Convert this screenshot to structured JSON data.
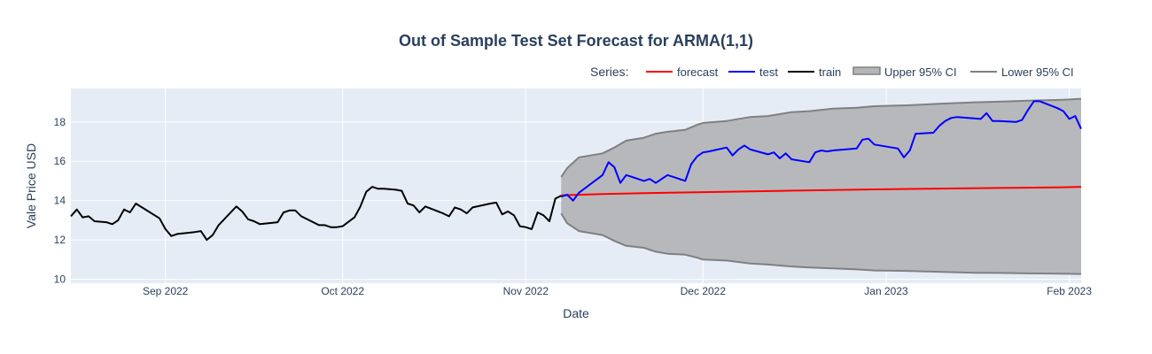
{
  "chart_data": {
    "type": "line",
    "title": "Out of Sample Test Set Forecast for ARMA(1,1)",
    "xlabel": "Date",
    "ylabel": "Vale Price USD",
    "xlim": [
      "2022-08-16",
      "2023-02-03"
    ],
    "ylim": [
      9.8,
      19.7
    ],
    "x_ticks": [
      {
        "date": "2022-09-01",
        "label": "Sep 2022"
      },
      {
        "date": "2022-10-01",
        "label": "Oct 2022"
      },
      {
        "date": "2022-11-01",
        "label": "Nov 2022"
      },
      {
        "date": "2022-12-01",
        "label": "Dec 2022"
      },
      {
        "date": "2023-01-01",
        "label": "Jan 2023"
      },
      {
        "date": "2023-02-01",
        "label": "Feb 2023"
      }
    ],
    "y_ticks": [
      10,
      12,
      14,
      16,
      18
    ],
    "grid": true,
    "legend": {
      "title": "Series:",
      "placement": "top-right",
      "orientation": "horizontal"
    },
    "series": [
      {
        "name": "Upper 95% CI",
        "color": "#808080",
        "fill_to": "Lower 95% CI",
        "fill_color": "#b4b5b8",
        "points": [
          [
            "2022-11-07",
            15.2
          ],
          [
            "2022-11-08",
            15.65
          ],
          [
            "2022-11-10",
            16.2
          ],
          [
            "2022-11-14",
            16.4
          ],
          [
            "2022-11-16",
            16.7
          ],
          [
            "2022-11-18",
            17.05
          ],
          [
            "2022-11-21",
            17.2
          ],
          [
            "2022-11-23",
            17.4
          ],
          [
            "2022-11-25",
            17.5
          ],
          [
            "2022-11-28",
            17.6
          ],
          [
            "2022-11-30",
            17.85
          ],
          [
            "2022-12-01",
            17.95
          ],
          [
            "2022-12-05",
            18.05
          ],
          [
            "2022-12-09",
            18.25
          ],
          [
            "2022-12-12",
            18.3
          ],
          [
            "2022-12-16",
            18.5
          ],
          [
            "2022-12-19",
            18.55
          ],
          [
            "2022-12-23",
            18.68
          ],
          [
            "2022-12-27",
            18.72
          ],
          [
            "2022-12-30",
            18.8
          ],
          [
            "2023-01-05",
            18.85
          ],
          [
            "2023-01-10",
            18.92
          ],
          [
            "2023-01-16",
            19.0
          ],
          [
            "2023-01-20",
            19.03
          ],
          [
            "2023-01-25",
            19.08
          ],
          [
            "2023-01-31",
            19.13
          ],
          [
            "2023-02-03",
            19.18
          ]
        ]
      },
      {
        "name": "Lower 95% CI",
        "color": "#808080",
        "points": [
          [
            "2022-11-07",
            13.35
          ],
          [
            "2022-11-08",
            12.85
          ],
          [
            "2022-11-10",
            12.45
          ],
          [
            "2022-11-14",
            12.25
          ],
          [
            "2022-11-16",
            11.95
          ],
          [
            "2022-11-18",
            11.7
          ],
          [
            "2022-11-21",
            11.6
          ],
          [
            "2022-11-23",
            11.4
          ],
          [
            "2022-11-25",
            11.3
          ],
          [
            "2022-11-28",
            11.25
          ],
          [
            "2022-11-30",
            11.1
          ],
          [
            "2022-12-01",
            11.0
          ],
          [
            "2022-12-05",
            10.95
          ],
          [
            "2022-12-09",
            10.8
          ],
          [
            "2022-12-12",
            10.75
          ],
          [
            "2022-12-16",
            10.65
          ],
          [
            "2022-12-19",
            10.6
          ],
          [
            "2022-12-23",
            10.55
          ],
          [
            "2022-12-27",
            10.5
          ],
          [
            "2022-12-30",
            10.45
          ],
          [
            "2023-01-05",
            10.42
          ],
          [
            "2023-01-10",
            10.38
          ],
          [
            "2023-01-16",
            10.33
          ],
          [
            "2023-01-20",
            10.32
          ],
          [
            "2023-01-25",
            10.3
          ],
          [
            "2023-01-31",
            10.28
          ],
          [
            "2023-02-03",
            10.27
          ]
        ]
      },
      {
        "name": "forecast",
        "color": "#ff0000",
        "points": [
          [
            "2022-11-07",
            14.27
          ],
          [
            "2022-11-14",
            14.33
          ],
          [
            "2022-11-21",
            14.38
          ],
          [
            "2022-11-30",
            14.42
          ],
          [
            "2022-12-09",
            14.47
          ],
          [
            "2022-12-19",
            14.52
          ],
          [
            "2022-12-30",
            14.57
          ],
          [
            "2023-01-10",
            14.61
          ],
          [
            "2023-01-20",
            14.64
          ],
          [
            "2023-01-31",
            14.68
          ],
          [
            "2023-02-03",
            14.7
          ]
        ]
      },
      {
        "name": "test",
        "color": "#0000ff",
        "points": [
          [
            "2022-11-07",
            14.2
          ],
          [
            "2022-11-08",
            14.3
          ],
          [
            "2022-11-09",
            14.0
          ],
          [
            "2022-11-10",
            14.4
          ],
          [
            "2022-11-14",
            15.3
          ],
          [
            "2022-11-15",
            15.95
          ],
          [
            "2022-11-16",
            15.7
          ],
          [
            "2022-11-17",
            14.9
          ],
          [
            "2022-11-18",
            15.3
          ],
          [
            "2022-11-21",
            15.0
          ],
          [
            "2022-11-22",
            15.1
          ],
          [
            "2022-11-23",
            14.9
          ],
          [
            "2022-11-25",
            15.3
          ],
          [
            "2022-11-28",
            15.0
          ],
          [
            "2022-11-29",
            15.85
          ],
          [
            "2022-11-30",
            16.25
          ],
          [
            "2022-12-01",
            16.45
          ],
          [
            "2022-12-02",
            16.5
          ],
          [
            "2022-12-05",
            16.7
          ],
          [
            "2022-12-06",
            16.3
          ],
          [
            "2022-12-07",
            16.6
          ],
          [
            "2022-12-08",
            16.8
          ],
          [
            "2022-12-09",
            16.6
          ],
          [
            "2022-12-12",
            16.35
          ],
          [
            "2022-12-13",
            16.45
          ],
          [
            "2022-12-14",
            16.15
          ],
          [
            "2022-12-15",
            16.4
          ],
          [
            "2022-12-16",
            16.1
          ],
          [
            "2022-12-19",
            15.95
          ],
          [
            "2022-12-20",
            16.45
          ],
          [
            "2022-12-21",
            16.55
          ],
          [
            "2022-12-22",
            16.5
          ],
          [
            "2022-12-23",
            16.55
          ],
          [
            "2022-12-27",
            16.65
          ],
          [
            "2022-12-28",
            17.1
          ],
          [
            "2022-12-29",
            17.15
          ],
          [
            "2022-12-30",
            16.85
          ],
          [
            "2023-01-03",
            16.65
          ],
          [
            "2023-01-04",
            16.2
          ],
          [
            "2023-01-05",
            16.55
          ],
          [
            "2023-01-06",
            17.4
          ],
          [
            "2023-01-09",
            17.45
          ],
          [
            "2023-01-10",
            17.8
          ],
          [
            "2023-01-11",
            18.05
          ],
          [
            "2023-01-12",
            18.2
          ],
          [
            "2023-01-13",
            18.25
          ],
          [
            "2023-01-17",
            18.15
          ],
          [
            "2023-01-18",
            18.45
          ],
          [
            "2023-01-19",
            18.05
          ],
          [
            "2023-01-20",
            18.05
          ],
          [
            "2023-01-23",
            18.0
          ],
          [
            "2023-01-24",
            18.1
          ],
          [
            "2023-01-25",
            18.6
          ],
          [
            "2023-01-26",
            19.05
          ],
          [
            "2023-01-27",
            19.05
          ],
          [
            "2023-01-30",
            18.7
          ],
          [
            "2023-01-31",
            18.55
          ],
          [
            "2023-02-01",
            18.15
          ],
          [
            "2023-02-02",
            18.3
          ],
          [
            "2023-02-03",
            17.65
          ]
        ]
      },
      {
        "name": "train",
        "color": "#000000",
        "points": [
          [
            "2022-08-16",
            13.2
          ],
          [
            "2022-08-17",
            13.55
          ],
          [
            "2022-08-18",
            13.15
          ],
          [
            "2022-08-19",
            13.2
          ],
          [
            "2022-08-20",
            12.95
          ],
          [
            "2022-08-22",
            12.9
          ],
          [
            "2022-08-23",
            12.8
          ],
          [
            "2022-08-24",
            13.0
          ],
          [
            "2022-08-25",
            13.55
          ],
          [
            "2022-08-26",
            13.4
          ],
          [
            "2022-08-27",
            13.85
          ],
          [
            "2022-08-31",
            13.1
          ],
          [
            "2022-09-01",
            12.55
          ],
          [
            "2022-09-02",
            12.2
          ],
          [
            "2022-09-03",
            12.3
          ],
          [
            "2022-09-06",
            12.4
          ],
          [
            "2022-09-07",
            12.45
          ],
          [
            "2022-09-08",
            12.0
          ],
          [
            "2022-09-09",
            12.25
          ],
          [
            "2022-09-10",
            12.75
          ],
          [
            "2022-09-13",
            13.7
          ],
          [
            "2022-09-14",
            13.45
          ],
          [
            "2022-09-15",
            13.05
          ],
          [
            "2022-09-16",
            12.95
          ],
          [
            "2022-09-17",
            12.8
          ],
          [
            "2022-09-20",
            12.9
          ],
          [
            "2022-09-21",
            13.4
          ],
          [
            "2022-09-22",
            13.5
          ],
          [
            "2022-09-23",
            13.5
          ],
          [
            "2022-09-24",
            13.2
          ],
          [
            "2022-09-27",
            12.75
          ],
          [
            "2022-09-28",
            12.75
          ],
          [
            "2022-09-29",
            12.65
          ],
          [
            "2022-09-30",
            12.65
          ],
          [
            "2022-10-01",
            12.7
          ],
          [
            "2022-10-03",
            13.15
          ],
          [
            "2022-10-04",
            13.7
          ],
          [
            "2022-10-05",
            14.45
          ],
          [
            "2022-10-06",
            14.7
          ],
          [
            "2022-10-07",
            14.6
          ],
          [
            "2022-10-08",
            14.6
          ],
          [
            "2022-10-10",
            14.55
          ],
          [
            "2022-10-11",
            14.5
          ],
          [
            "2022-10-12",
            13.85
          ],
          [
            "2022-10-13",
            13.75
          ],
          [
            "2022-10-14",
            13.4
          ],
          [
            "2022-10-15",
            13.7
          ],
          [
            "2022-10-18",
            13.35
          ],
          [
            "2022-10-19",
            13.2
          ],
          [
            "2022-10-20",
            13.65
          ],
          [
            "2022-10-21",
            13.55
          ],
          [
            "2022-10-22",
            13.35
          ],
          [
            "2022-10-23",
            13.65
          ],
          [
            "2022-10-26",
            13.85
          ],
          [
            "2022-10-27",
            13.9
          ],
          [
            "2022-10-28",
            13.3
          ],
          [
            "2022-10-29",
            13.45
          ],
          [
            "2022-10-30",
            13.25
          ],
          [
            "2022-10-31",
            12.7
          ],
          [
            "2022-11-01",
            12.65
          ],
          [
            "2022-11-02",
            12.55
          ],
          [
            "2022-11-03",
            13.4
          ],
          [
            "2022-11-04",
            13.25
          ],
          [
            "2022-11-05",
            12.95
          ],
          [
            "2022-11-06",
            14.1
          ],
          [
            "2022-11-07",
            14.25
          ]
        ]
      }
    ]
  }
}
